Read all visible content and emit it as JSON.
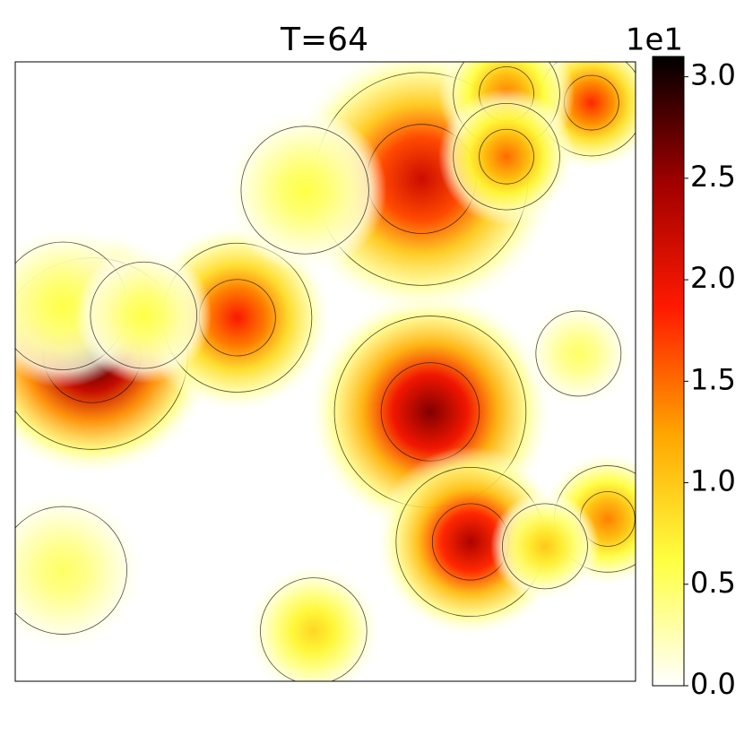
{
  "chart_data": {
    "type": "heatmap",
    "title": "T=64",
    "colorbar_offset": "1e1",
    "clim": [
      0,
      3.1
    ],
    "cticks": [
      {
        "value": 0,
        "label": "0.0"
      },
      {
        "value": 0.5,
        "label": "0.5"
      },
      {
        "value": 1,
        "label": "1.0"
      },
      {
        "value": 1.5,
        "label": "1.5"
      },
      {
        "value": 2,
        "label": "2.0"
      },
      {
        "value": 2.5,
        "label": "2.5"
      },
      {
        "value": 3,
        "label": "3.0"
      }
    ],
    "colormap": [
      "#ffffff",
      "#ffff40",
      "#ffa500",
      "#ff1a00",
      "#a00000",
      "#000000"
    ],
    "xlim": [
      0,
      100
    ],
    "ylim": [
      0,
      100
    ],
    "peaks": [
      {
        "x": 12.4,
        "y": 47.1,
        "value": 3.0,
        "spread": 9
      },
      {
        "x": 35.8,
        "y": 41.3,
        "value": 1.9,
        "spread": 7
      },
      {
        "x": 66.9,
        "y": 56.5,
        "value": 2.6,
        "spread": 9
      },
      {
        "x": 65.5,
        "y": 18.9,
        "value": 2.2,
        "spread": 10
      },
      {
        "x": 92.9,
        "y": 6.6,
        "value": 1.8,
        "spread": 5
      },
      {
        "x": 79.2,
        "y": 5.2,
        "value": 1.4,
        "spread": 5
      },
      {
        "x": 79.2,
        "y": 15.3,
        "value": 1.5,
        "spread": 5
      },
      {
        "x": 73.4,
        "y": 77.5,
        "value": 2.4,
        "spread": 7
      },
      {
        "x": 95.5,
        "y": 73.8,
        "value": 1.4,
        "spread": 5
      },
      {
        "x": 85.4,
        "y": 78.2,
        "value": 1.0,
        "spread": 4
      },
      {
        "x": 48.1,
        "y": 91.9,
        "value": 0.9,
        "spread": 5
      },
      {
        "x": 7.7,
        "y": 82.1,
        "value": 0.5,
        "spread": 6
      },
      {
        "x": 90.8,
        "y": 47.1,
        "value": 0.5,
        "spread": 4
      },
      {
        "x": 46.7,
        "y": 20.7,
        "value": 0.6,
        "spread": 6
      },
      {
        "x": 7.7,
        "y": 39.4,
        "value": 0.6,
        "spread": 6
      },
      {
        "x": 20.7,
        "y": 40.9,
        "value": 0.6,
        "spread": 5
      }
    ]
  }
}
